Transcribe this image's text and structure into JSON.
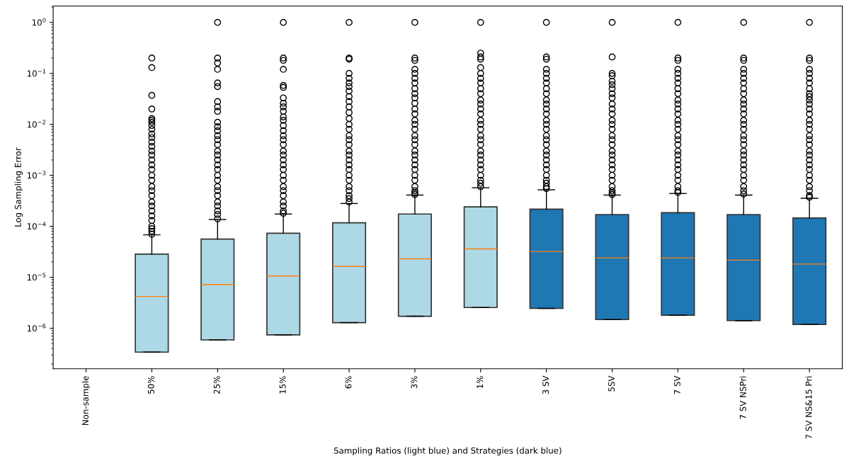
{
  "chart_data": {
    "type": "box",
    "xlabel": "Sampling Ratios (light blue) and Strategies (dark blue)",
    "ylabel": "Log Sampling Error",
    "log": true,
    "categories": [
      "Non-sample",
      "50%",
      "25%",
      "15%",
      "6%",
      "3%",
      "1%",
      "3 SV",
      "5SV",
      "7 SV",
      "7 SV NSPri",
      "7 SV NS&15 Pri"
    ],
    "colors": [
      null,
      "#add8e6",
      "#add8e6",
      "#add8e6",
      "#add8e6",
      "#add8e6",
      "#add8e6",
      "#1f77b4",
      "#1f77b4",
      "#1f77b4",
      "#1f77b4",
      "#1f77b4"
    ],
    "boxes": [
      null,
      {
        "low": 3.4e-07,
        "q1": 3.4e-07,
        "median": 4.2e-06,
        "q3": 2.85e-05,
        "high": 6.8e-05,
        "outliers": [
          0.2,
          0.13,
          0.037,
          0.02,
          0.013,
          0.012,
          0.011,
          0.0095,
          0.008,
          0.0065,
          0.0055,
          0.0045,
          0.0037,
          0.003,
          0.0025,
          0.002,
          0.0016,
          0.0013,
          0.001,
          0.0008,
          0.0006,
          0.0005,
          0.0004,
          0.0003,
          0.00025,
          0.0002,
          0.00016,
          0.00013,
          0.0001,
          9e-05,
          8e-05,
          7e-05
        ]
      },
      {
        "low": 5.9e-07,
        "q1": 5.9e-07,
        "median": 7.2e-06,
        "q3": 5.6e-05,
        "high": 0.000136,
        "outliers": [
          1,
          0.2,
          0.16,
          0.12,
          0.065,
          0.055,
          0.028,
          0.022,
          0.018,
          0.011,
          0.009,
          0.0075,
          0.006,
          0.005,
          0.004,
          0.003,
          0.0025,
          0.002,
          0.0016,
          0.0013,
          0.001,
          0.0008,
          0.0006,
          0.0005,
          0.0004,
          0.0003,
          0.00025,
          0.0002,
          0.00017,
          0.00014
        ]
      },
      {
        "low": 7.4e-07,
        "q1": 7.4e-07,
        "median": 1.06e-05,
        "q3": 7.3e-05,
        "high": 0.000174,
        "outliers": [
          1,
          0.2,
          0.18,
          0.12,
          0.058,
          0.053,
          0.033,
          0.026,
          0.022,
          0.018,
          0.014,
          0.012,
          0.0095,
          0.0075,
          0.006,
          0.005,
          0.004,
          0.003,
          0.0025,
          0.002,
          0.0016,
          0.0013,
          0.001,
          0.0008,
          0.0006,
          0.0005,
          0.0004,
          0.0003,
          0.00025,
          0.0002,
          0.00018
        ]
      },
      {
        "low": 1.29e-06,
        "q1": 1.29e-06,
        "median": 1.63e-05,
        "q3": 0.000117,
        "high": 0.00028,
        "outliers": [
          1,
          0.2,
          0.19,
          0.1,
          0.08,
          0.065,
          0.055,
          0.045,
          0.035,
          0.028,
          0.022,
          0.017,
          0.013,
          0.01,
          0.008,
          0.006,
          0.005,
          0.004,
          0.003,
          0.0025,
          0.002,
          0.0016,
          0.0013,
          0.001,
          0.0008,
          0.0006,
          0.0005,
          0.0004,
          0.00035,
          0.0003
        ]
      },
      {
        "low": 1.72e-06,
        "q1": 1.72e-06,
        "median": 2.3e-05,
        "q3": 0.000174,
        "high": 0.00041,
        "outliers": [
          1,
          0.2,
          0.18,
          0.12,
          0.1,
          0.08,
          0.065,
          0.05,
          0.04,
          0.033,
          0.026,
          0.02,
          0.016,
          0.012,
          0.01,
          0.008,
          0.006,
          0.005,
          0.004,
          0.003,
          0.0025,
          0.002,
          0.0016,
          0.0013,
          0.001,
          0.0008,
          0.0006,
          0.0005,
          0.00045,
          0.00042
        ]
      },
      {
        "low": 2.55e-06,
        "q1": 2.55e-06,
        "median": 3.6e-05,
        "q3": 0.00024,
        "high": 0.00057,
        "outliers": [
          1,
          0.25,
          0.21,
          0.19,
          0.13,
          0.1,
          0.08,
          0.065,
          0.05,
          0.04,
          0.03,
          0.025,
          0.02,
          0.016,
          0.012,
          0.01,
          0.008,
          0.006,
          0.005,
          0.004,
          0.003,
          0.0025,
          0.002,
          0.0016,
          0.0013,
          0.001,
          0.0008,
          0.0007,
          0.0006
        ]
      },
      {
        "low": 2.45e-06,
        "q1": 2.45e-06,
        "median": 3.2e-05,
        "q3": 0.000217,
        "high": 0.00052,
        "outliers": [
          1,
          0.21,
          0.19,
          0.12,
          0.1,
          0.08,
          0.065,
          0.05,
          0.04,
          0.03,
          0.025,
          0.02,
          0.016,
          0.012,
          0.01,
          0.008,
          0.006,
          0.005,
          0.004,
          0.003,
          0.0025,
          0.002,
          0.0016,
          0.0013,
          0.001,
          0.0008,
          0.0007,
          0.0006,
          0.00055
        ]
      },
      {
        "low": 1.48e-06,
        "q1": 1.48e-06,
        "median": 2.4e-05,
        "q3": 0.00017,
        "high": 0.00041,
        "outliers": [
          1,
          0.21,
          0.1,
          0.09,
          0.07,
          0.06,
          0.05,
          0.04,
          0.033,
          0.025,
          0.02,
          0.016,
          0.012,
          0.01,
          0.008,
          0.006,
          0.005,
          0.004,
          0.003,
          0.0025,
          0.002,
          0.0016,
          0.0013,
          0.001,
          0.0008,
          0.0006,
          0.0005,
          0.00045,
          0.00042
        ]
      },
      {
        "low": 1.8e-06,
        "q1": 1.8e-06,
        "median": 2.4e-05,
        "q3": 0.000185,
        "high": 0.00044,
        "outliers": [
          1,
          0.2,
          0.18,
          0.12,
          0.1,
          0.08,
          0.065,
          0.05,
          0.04,
          0.03,
          0.025,
          0.02,
          0.016,
          0.012,
          0.01,
          0.008,
          0.006,
          0.005,
          0.004,
          0.003,
          0.0025,
          0.002,
          0.0016,
          0.0013,
          0.001,
          0.0008,
          0.0006,
          0.0005,
          0.00046
        ]
      },
      {
        "low": 1.41e-06,
        "q1": 1.41e-06,
        "median": 2.17e-05,
        "q3": 0.00017,
        "high": 0.00041,
        "outliers": [
          1,
          0.2,
          0.18,
          0.12,
          0.1,
          0.08,
          0.065,
          0.05,
          0.04,
          0.03,
          0.025,
          0.02,
          0.016,
          0.012,
          0.01,
          0.008,
          0.006,
          0.005,
          0.004,
          0.003,
          0.0025,
          0.002,
          0.0016,
          0.0013,
          0.001,
          0.0008,
          0.0006,
          0.0005,
          0.00043
        ]
      },
      {
        "low": 1.19e-06,
        "q1": 1.19e-06,
        "median": 1.82e-05,
        "q3": 0.000145,
        "high": 0.000355,
        "outliers": [
          1,
          0.2,
          0.18,
          0.12,
          0.1,
          0.08,
          0.065,
          0.05,
          0.04,
          0.035,
          0.03,
          0.025,
          0.02,
          0.016,
          0.012,
          0.01,
          0.008,
          0.006,
          0.005,
          0.004,
          0.003,
          0.0025,
          0.002,
          0.0016,
          0.0013,
          0.001,
          0.0008,
          0.0006,
          0.0005,
          0.0004,
          0.00037
        ]
      }
    ],
    "ylim": [
      1.6e-07,
      2.1
    ],
    "yticks": [
      {
        "value": 1e-06,
        "label": "10$^{−6}$"
      },
      {
        "value": 1e-05,
        "label": "10$^{−5}$"
      },
      {
        "value": 0.0001,
        "label": "10$^{−4}$"
      },
      {
        "value": 0.001,
        "label": "10$^{−3}$"
      },
      {
        "value": 0.01,
        "label": "10$^{−2}$"
      },
      {
        "value": 0.1,
        "label": "10$^{−1}$"
      },
      {
        "value": 1,
        "label": "10$^{0}$"
      }
    ],
    "grid": false
  }
}
